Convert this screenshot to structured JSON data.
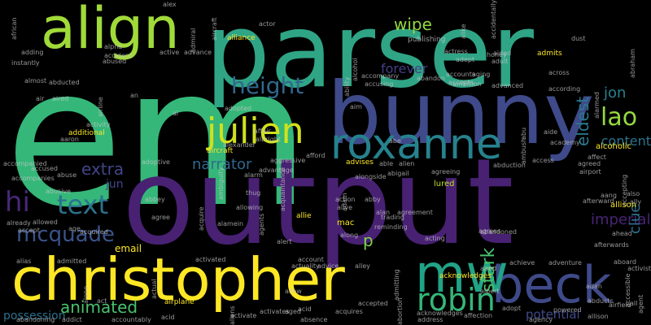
{
  "background_color": "#000000",
  "words": [
    {
      "text": "em",
      "color": "#35b779"
    },
    {
      "text": "parser",
      "color": "#2fa586"
    },
    {
      "text": "output",
      "color": "#482173"
    },
    {
      "text": "bunny",
      "color": "#3e4a89"
    },
    {
      "text": "christopher",
      "color": "#fde725"
    },
    {
      "text": "align",
      "color": "#a0da39"
    },
    {
      "text": "roxanne",
      "color": "#26828e"
    },
    {
      "text": "julien",
      "color": "#d0e11c"
    },
    {
      "text": "beck",
      "color": "#3e4a89"
    },
    {
      "text": "mw",
      "color": "#20a386"
    },
    {
      "text": "robin",
      "color": "#35b779"
    },
    {
      "text": "height",
      "color": "#31678e"
    },
    {
      "text": "text",
      "color": "#2c728e"
    },
    {
      "text": "mcquade",
      "color": "#3b528b"
    },
    {
      "text": "hi",
      "color": "#482878"
    },
    {
      "text": "lao",
      "color": "#95d840"
    },
    {
      "text": "animated",
      "color": "#4ac16d"
    },
    {
      "text": "narrator",
      "color": "#31688e"
    },
    {
      "text": "content",
      "color": "#2c728e"
    },
    {
      "text": "jon",
      "color": "#26828e"
    },
    {
      "text": "extra",
      "color": "#404688"
    },
    {
      "text": "imperial",
      "color": "#482475"
    },
    {
      "text": "stark",
      "color": "#4ac16d"
    },
    {
      "text": "eldest",
      "color": "#2a788e"
    },
    {
      "text": "wipe",
      "color": "#95d840"
    },
    {
      "text": "forever",
      "color": "#433e85"
    },
    {
      "text": "potential",
      "color": "#3e4a89"
    },
    {
      "text": "possession",
      "color": "#2d708e"
    },
    {
      "text": "clue",
      "color": "#2c728e"
    },
    {
      "text": "jun",
      "color": "#404688"
    },
    {
      "text": "p",
      "color": "#7fd34e"
    },
    {
      "text": "email",
      "color": "#fde725"
    },
    {
      "text": "lured",
      "color": "#bddf26"
    },
    {
      "text": "mac",
      "color": "#fde725"
    },
    {
      "text": "allison",
      "color": "#fde725"
    },
    {
      "text": "alcoholic",
      "color": "#fde725"
    },
    {
      "text": "additional",
      "color": "#fde725"
    },
    {
      "text": "advises",
      "color": "#fde725"
    },
    {
      "text": "alliance",
      "color": "#fde725"
    },
    {
      "text": "allie",
      "color": "#fde725"
    },
    {
      "text": "admits",
      "color": "#fde725"
    },
    {
      "text": "acknowledges",
      "color": "#fde725"
    },
    {
      "text": "airplane",
      "color": "#fde725"
    },
    {
      "text": "aircraft",
      "color": "#fde725"
    },
    {
      "text": "publishing",
      "color": "#c8c8c8"
    },
    {
      "text": "actress",
      "color": "#c8c8c8"
    },
    {
      "text": "honey",
      "color": "#c8c8c8"
    },
    {
      "text": "adult",
      "color": "#c8c8c8"
    },
    {
      "text": "aided",
      "color": "#c8c8c8"
    },
    {
      "text": "adept",
      "color": "#c8c8c8"
    },
    {
      "text": "accounts",
      "color": "#c8c8c8"
    },
    {
      "text": "aging",
      "color": "#c8c8c8"
    },
    {
      "text": "abandon",
      "color": "#c8c8c8"
    },
    {
      "text": "accepts",
      "color": "#c8c8c8"
    },
    {
      "text": "ambition",
      "color": "#c8c8c8"
    },
    {
      "text": "advanced",
      "color": "#c8c8c8"
    },
    {
      "text": "according",
      "color": "#c8c8c8"
    },
    {
      "text": "across",
      "color": "#c8c8c8"
    },
    {
      "text": "accompany",
      "color": "#c8c8c8"
    },
    {
      "text": "accusing",
      "color": "#c8c8c8"
    },
    {
      "text": "aim",
      "color": "#c8c8c8"
    },
    {
      "text": "actor",
      "color": "#c8c8c8"
    },
    {
      "text": "alpha",
      "color": "#c8c8c8"
    },
    {
      "text": "accident",
      "color": "#c8c8c8"
    },
    {
      "text": "abused",
      "color": "#c8c8c8"
    },
    {
      "text": "active",
      "color": "#c8c8c8"
    },
    {
      "text": "advance",
      "color": "#c8c8c8"
    },
    {
      "text": "instantly",
      "color": "#c8c8c8"
    },
    {
      "text": "adding",
      "color": "#c8c8c8"
    },
    {
      "text": "almost",
      "color": "#c8c8c8"
    },
    {
      "text": "abducted",
      "color": "#c8c8c8"
    },
    {
      "text": "air",
      "color": "#c8c8c8"
    },
    {
      "text": "aired",
      "color": "#c8c8c8"
    },
    {
      "text": "an",
      "color": "#c8c8c8"
    },
    {
      "text": "ai",
      "color": "#c8c8c8"
    },
    {
      "text": "adopted",
      "color": "#c8c8c8"
    },
    {
      "text": "activity",
      "color": "#c8c8c8"
    },
    {
      "text": "aaron",
      "color": "#c8c8c8"
    },
    {
      "text": "accompanied",
      "color": "#c8c8c8"
    },
    {
      "text": "accused",
      "color": "#c8c8c8"
    },
    {
      "text": "accompanies",
      "color": "#c8c8c8"
    },
    {
      "text": "abuse",
      "color": "#c8c8c8"
    },
    {
      "text": "adoptive",
      "color": "#c8c8c8"
    },
    {
      "text": "abusive",
      "color": "#c8c8c8"
    },
    {
      "text": "abbey",
      "color": "#c8c8c8"
    },
    {
      "text": "agree",
      "color": "#c8c8c8"
    },
    {
      "text": "allowing",
      "color": "#c8c8c8"
    },
    {
      "text": "alexander",
      "color": "#c8c8c8"
    },
    {
      "text": "affair",
      "color": "#c8c8c8"
    },
    {
      "text": "albright",
      "color": "#c8c8c8"
    },
    {
      "text": "alarm",
      "color": "#c8c8c8"
    },
    {
      "text": "advantage",
      "color": "#c8c8c8"
    },
    {
      "text": "aggressive",
      "color": "#c8c8c8"
    },
    {
      "text": "afford",
      "color": "#c8c8c8"
    },
    {
      "text": "able",
      "color": "#c8c8c8"
    },
    {
      "text": "alien",
      "color": "#c8c8c8"
    },
    {
      "text": "agreeing",
      "color": "#c8c8c8"
    },
    {
      "text": "abduction",
      "color": "#c8c8c8"
    },
    {
      "text": "abigail",
      "color": "#c8c8c8"
    },
    {
      "text": "alongside",
      "color": "#c8c8c8"
    },
    {
      "text": "access",
      "color": "#c8c8c8"
    },
    {
      "text": "affect",
      "color": "#c8c8c8"
    },
    {
      "text": "agreed",
      "color": "#c8c8c8"
    },
    {
      "text": "airport",
      "color": "#c8c8c8"
    },
    {
      "text": "academy",
      "color": "#c8c8c8"
    },
    {
      "text": "aide",
      "color": "#c8c8c8"
    },
    {
      "text": "abe",
      "color": "#c8c8c8"
    },
    {
      "text": "thug",
      "color": "#c8c8c8"
    },
    {
      "text": "abby",
      "color": "#c8c8c8"
    },
    {
      "text": "action",
      "color": "#c8c8c8"
    },
    {
      "text": "alive",
      "color": "#c8c8c8"
    },
    {
      "text": "alan",
      "color": "#c8c8c8"
    },
    {
      "text": "agreement",
      "color": "#c8c8c8"
    },
    {
      "text": "afterward",
      "color": "#c8c8c8"
    },
    {
      "text": "aang",
      "color": "#c8c8c8"
    },
    {
      "text": "also",
      "color": "#c8c8c8"
    },
    {
      "text": "ally",
      "color": "#c8c8c8"
    },
    {
      "text": "ahead",
      "color": "#c8c8c8"
    },
    {
      "text": "afterwards",
      "color": "#c8c8c8"
    },
    {
      "text": "reminding",
      "color": "#c8c8c8"
    },
    {
      "text": "trading",
      "color": "#c8c8c8"
    },
    {
      "text": "along",
      "color": "#c8c8c8"
    },
    {
      "text": "agrees",
      "color": "#c8c8c8"
    },
    {
      "text": "abandoned",
      "color": "#c8c8c8"
    },
    {
      "text": "acting",
      "color": "#c8c8c8"
    },
    {
      "text": "already",
      "color": "#c8c8c8"
    },
    {
      "text": "allowed",
      "color": "#c8c8c8"
    },
    {
      "text": "accept",
      "color": "#c8c8c8"
    },
    {
      "text": "age",
      "color": "#c8c8c8"
    },
    {
      "text": "acquired",
      "color": "#c8c8c8"
    },
    {
      "text": "alamein",
      "color": "#c8c8c8"
    },
    {
      "text": "alert",
      "color": "#c8c8c8"
    },
    {
      "text": "alias",
      "color": "#c8c8c8"
    },
    {
      "text": "admitted",
      "color": "#c8c8c8"
    },
    {
      "text": "activated",
      "color": "#c8c8c8"
    },
    {
      "text": "account",
      "color": "#c8c8c8"
    },
    {
      "text": "actuality",
      "color": "#c8c8c8"
    },
    {
      "text": "advice",
      "color": "#c8c8c8"
    },
    {
      "text": "alley",
      "color": "#c8c8c8"
    },
    {
      "text": "achieve",
      "color": "#c8c8c8"
    },
    {
      "text": "adventure",
      "color": "#c8c8c8"
    },
    {
      "text": "aboard",
      "color": "#c8c8c8"
    },
    {
      "text": "activist",
      "color": "#c8c8c8"
    },
    {
      "text": "act",
      "color": "#c8c8c8"
    },
    {
      "text": "allow",
      "color": "#c8c8c8"
    },
    {
      "text": "aired",
      "color": "#c8c8c8"
    },
    {
      "text": "albert",
      "color": "#c8c8c8"
    },
    {
      "text": "adan",
      "color": "#c8c8c8"
    },
    {
      "text": "all",
      "color": "#c8c8c8"
    },
    {
      "text": "airfield",
      "color": "#c8c8c8"
    },
    {
      "text": "abducts",
      "color": "#c8c8c8"
    },
    {
      "text": "allison",
      "color": "#c8c8c8"
    },
    {
      "text": "accepted",
      "color": "#c8c8c8"
    },
    {
      "text": "activates",
      "color": "#c8c8c8"
    },
    {
      "text": "acquires",
      "color": "#c8c8c8"
    },
    {
      "text": "acknowledges",
      "color": "#c8c8c8"
    },
    {
      "text": "address",
      "color": "#c8c8c8"
    },
    {
      "text": "affection",
      "color": "#c8c8c8"
    },
    {
      "text": "adopt",
      "color": "#c8c8c8"
    },
    {
      "text": "powered",
      "color": "#c8c8c8"
    },
    {
      "text": "agency",
      "color": "#c8c8c8"
    },
    {
      "text": "abandoning",
      "color": "#c8c8c8"
    },
    {
      "text": "addict",
      "color": "#c8c8c8"
    },
    {
      "text": "accountably",
      "color": "#c8c8c8"
    },
    {
      "text": "acid",
      "color": "#c8c8c8"
    },
    {
      "text": "activate",
      "color": "#c8c8c8"
    },
    {
      "text": "absence",
      "color": "#c8c8c8"
    },
    {
      "text": "aged",
      "color": "#c8c8c8"
    },
    {
      "text": "acid",
      "color": "#c8c8c8"
    },
    {
      "text": "dust",
      "color": "#c8c8c8"
    },
    {
      "text": "alex",
      "color": "#c8c8c8"
    },
    {
      "text": "ability",
      "color": "#c8c8c8"
    },
    {
      "text": "alcohol",
      "color": "#c8c8c8"
    },
    {
      "text": "african",
      "color": "#c8c8c8"
    },
    {
      "text": "admiral",
      "color": "#c8c8c8"
    },
    {
      "text": "airline",
      "color": "#c8c8c8"
    },
    {
      "text": "actual",
      "color": "#c8c8c8"
    },
    {
      "text": "acquire",
      "color": "#c8c8c8"
    },
    {
      "text": "abraham",
      "color": "#c8c8c8"
    },
    {
      "text": "accepting",
      "color": "#c8c8c8"
    },
    {
      "text": "abortion",
      "color": "#c8c8c8"
    },
    {
      "text": "admitting",
      "color": "#c8c8c8"
    },
    {
      "text": "abu",
      "color": "#c8c8c8"
    },
    {
      "text": "agent",
      "color": "#c8c8c8"
    },
    {
      "text": "alone",
      "color": "#c8c8c8"
    },
    {
      "text": "accidentally",
      "color": "#c8c8c8"
    },
    {
      "text": "agents",
      "color": "#c8c8c8"
    },
    {
      "text": "aliens",
      "color": "#c8c8c8"
    },
    {
      "text": "ambiguity",
      "color": "#c8c8c8"
    },
    {
      "text": "acquaintance",
      "color": "#c8c8c8"
    },
    {
      "text": "alike",
      "color": "#c8c8c8"
    },
    {
      "text": "adam",
      "color": "#c8c8c8"
    },
    {
      "text": "accessible",
      "color": "#c8c8c8"
    },
    {
      "text": "aircraft",
      "color": "#c8c8c8"
    },
    {
      "text": "ambush",
      "color": "#c8c8c8"
    },
    {
      "text": "alarmed",
      "color": "#c8c8c8"
    }
  ]
}
